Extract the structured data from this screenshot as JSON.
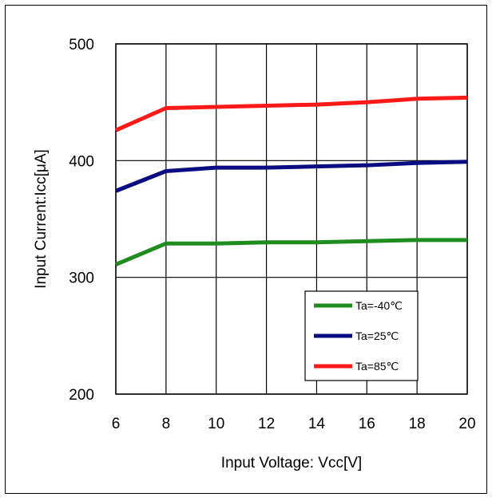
{
  "chart_data": {
    "type": "line",
    "title": "",
    "xlabel": "Input Voltage: Vcc[V]",
    "ylabel": "Input Current:Icc[μA]",
    "xlim": [
      6,
      20
    ],
    "ylim": [
      200,
      500
    ],
    "xticks": [
      6,
      8,
      10,
      12,
      14,
      16,
      18,
      20
    ],
    "yticks": [
      200,
      300,
      400,
      500
    ],
    "grid": true,
    "legend_position": "bottom-right",
    "x": [
      6,
      8,
      10,
      12,
      14,
      16,
      18,
      20
    ],
    "series": [
      {
        "name": "Ta=-40℃",
        "color": "#1f8c1f",
        "values": [
          311,
          329,
          329,
          330,
          330,
          331,
          332,
          332
        ]
      },
      {
        "name": "Ta=25℃",
        "color": "#0b0b82",
        "values": [
          374,
          391,
          394,
          394,
          395,
          396,
          398,
          399
        ]
      },
      {
        "name": "Ta=85℃",
        "color": "#ff1a1a",
        "values": [
          426,
          445,
          446,
          447,
          448,
          450,
          453,
          454
        ]
      }
    ]
  }
}
